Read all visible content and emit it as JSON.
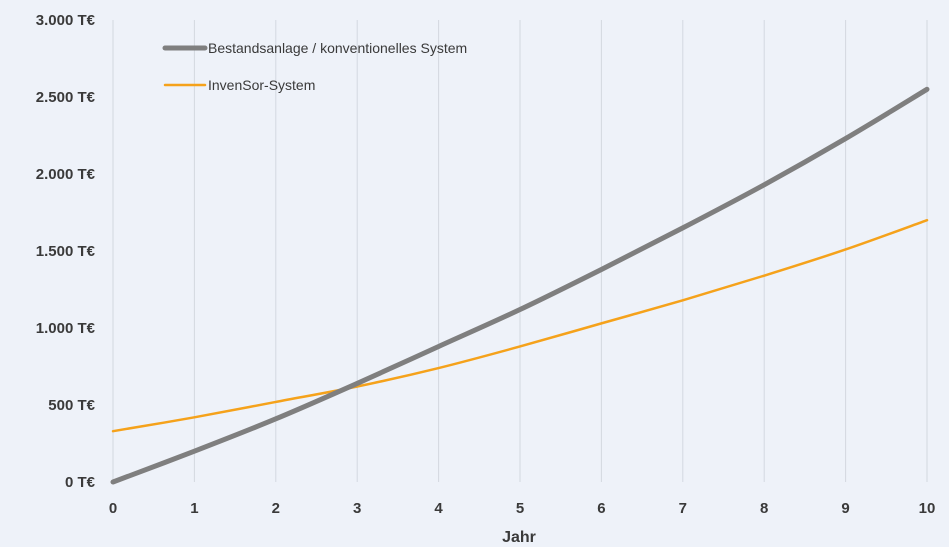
{
  "chart_data": {
    "type": "line",
    "title": "",
    "xlabel": "Jahr",
    "ylabel": "",
    "x": [
      0,
      1,
      2,
      3,
      4,
      5,
      6,
      7,
      8,
      9,
      10
    ],
    "x_tick_labels": [
      "0",
      "1",
      "2",
      "3",
      "4",
      "5",
      "6",
      "7",
      "8",
      "9",
      "10"
    ],
    "y_tick_values": [
      0,
      500,
      1000,
      1500,
      2000,
      2500,
      3000
    ],
    "y_tick_labels": [
      "0 T€",
      "500 T€",
      "1.000 T€",
      "1.500 T€",
      "2.000 T€",
      "2.500 T€",
      "3.000 T€"
    ],
    "xlim": [
      0,
      10
    ],
    "ylim": [
      0,
      3000
    ],
    "grid": "vertical",
    "legend_position": "top-left",
    "series": [
      {
        "name": "Bestandsanlage / konventionelles System",
        "color": "#7f7f7f",
        "values": [
          0,
          200,
          410,
          640,
          880,
          1120,
          1380,
          1650,
          1930,
          2230,
          2550
        ]
      },
      {
        "name": "InvenSor-System",
        "color": "#f5a21b",
        "values": [
          330,
          420,
          520,
          620,
          740,
          880,
          1030,
          1180,
          1340,
          1510,
          1700
        ]
      }
    ]
  }
}
